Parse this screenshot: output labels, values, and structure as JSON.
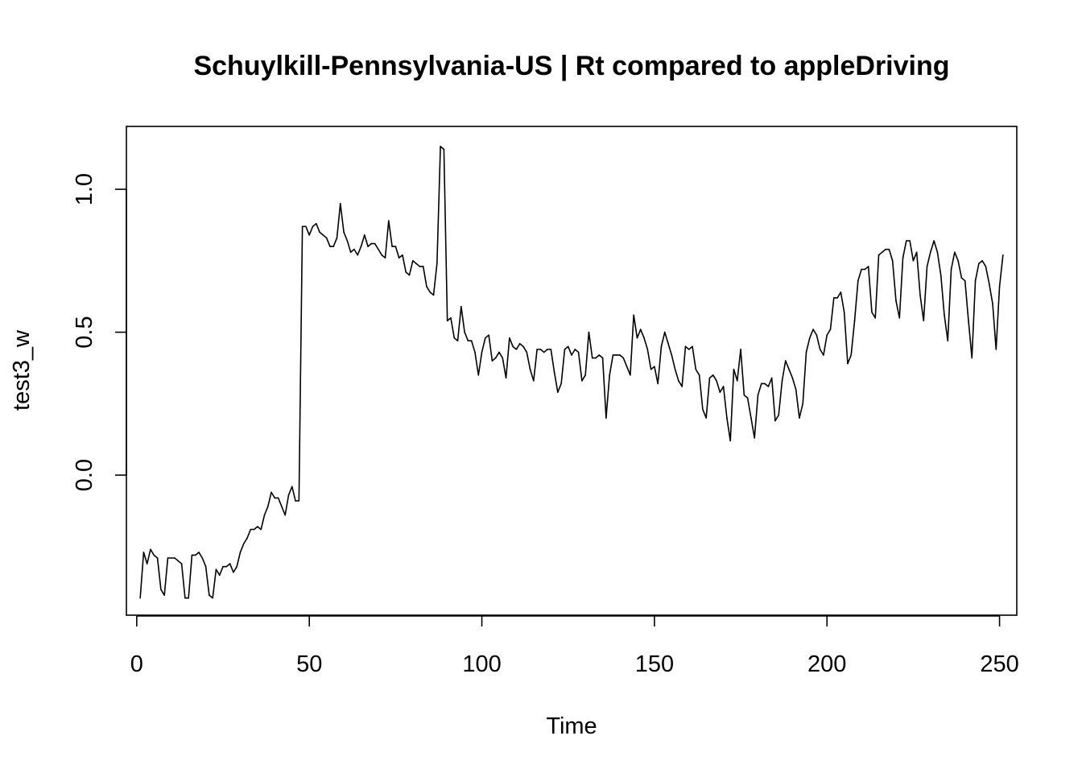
{
  "chart_data": {
    "type": "line",
    "title": "Schuylkill-Pennsylvania-US | Rt compared to appleDriving",
    "xlabel": "Time",
    "ylabel": "test3_w",
    "xlim": [
      -3,
      255
    ],
    "ylim": [
      -0.49,
      1.22
    ],
    "x_ticks": [
      0,
      50,
      100,
      150,
      200,
      250
    ],
    "x_tick_labels": [
      "0",
      "50",
      "100",
      "150",
      "200",
      "250"
    ],
    "y_ticks": [
      0.0,
      0.5,
      1.0
    ],
    "y_tick_labels": [
      "0.0",
      "0.5",
      "1.0"
    ],
    "grid": false,
    "series": [
      {
        "x_start": 1,
        "values": [
          -0.43,
          -0.27,
          -0.31,
          -0.26,
          -0.28,
          -0.29,
          -0.4,
          -0.42,
          -0.29,
          -0.29,
          -0.29,
          -0.3,
          -0.31,
          -0.43,
          -0.43,
          -0.28,
          -0.28,
          -0.27,
          -0.29,
          -0.32,
          -0.42,
          -0.43,
          -0.33,
          -0.35,
          -0.32,
          -0.32,
          -0.31,
          -0.34,
          -0.32,
          -0.27,
          -0.24,
          -0.22,
          -0.19,
          -0.19,
          -0.18,
          -0.19,
          -0.14,
          -0.11,
          -0.06,
          -0.08,
          -0.08,
          -0.11,
          -0.14,
          -0.07,
          -0.04,
          -0.09,
          -0.09,
          0.87,
          0.87,
          0.84,
          0.87,
          0.88,
          0.85,
          0.84,
          0.83,
          0.8,
          0.8,
          0.83,
          0.95,
          0.85,
          0.82,
          0.78,
          0.79,
          0.77,
          0.8,
          0.84,
          0.8,
          0.81,
          0.81,
          0.79,
          0.77,
          0.76,
          0.89,
          0.8,
          0.8,
          0.76,
          0.77,
          0.71,
          0.7,
          0.75,
          0.74,
          0.73,
          0.73,
          0.66,
          0.64,
          0.63,
          0.74,
          1.15,
          1.14,
          0.54,
          0.55,
          0.48,
          0.47,
          0.59,
          0.5,
          0.47,
          0.47,
          0.43,
          0.35,
          0.43,
          0.48,
          0.49,
          0.4,
          0.41,
          0.43,
          0.41,
          0.34,
          0.48,
          0.45,
          0.44,
          0.46,
          0.45,
          0.43,
          0.37,
          0.33,
          0.44,
          0.44,
          0.43,
          0.44,
          0.44,
          0.36,
          0.29,
          0.32,
          0.44,
          0.45,
          0.42,
          0.44,
          0.43,
          0.33,
          0.35,
          0.5,
          0.41,
          0.41,
          0.42,
          0.41,
          0.2,
          0.35,
          0.42,
          0.42,
          0.42,
          0.41,
          0.38,
          0.35,
          0.56,
          0.48,
          0.51,
          0.48,
          0.44,
          0.37,
          0.38,
          0.32,
          0.45,
          0.5,
          0.46,
          0.42,
          0.37,
          0.33,
          0.31,
          0.45,
          0.44,
          0.45,
          0.37,
          0.35,
          0.23,
          0.2,
          0.34,
          0.35,
          0.33,
          0.29,
          0.31,
          0.2,
          0.12,
          0.37,
          0.33,
          0.44,
          0.28,
          0.27,
          0.2,
          0.13,
          0.28,
          0.32,
          0.32,
          0.31,
          0.34,
          0.19,
          0.21,
          0.33,
          0.4,
          0.37,
          0.34,
          0.3,
          0.2,
          0.25,
          0.43,
          0.48,
          0.51,
          0.49,
          0.44,
          0.42,
          0.49,
          0.51,
          0.62,
          0.62,
          0.64,
          0.57,
          0.39,
          0.42,
          0.54,
          0.68,
          0.72,
          0.72,
          0.73,
          0.57,
          0.55,
          0.77,
          0.78,
          0.79,
          0.79,
          0.75,
          0.61,
          0.55,
          0.76,
          0.82,
          0.82,
          0.75,
          0.78,
          0.63,
          0.54,
          0.73,
          0.78,
          0.82,
          0.78,
          0.7,
          0.56,
          0.47,
          0.72,
          0.78,
          0.75,
          0.69,
          0.68,
          0.54,
          0.41,
          0.68,
          0.74,
          0.75,
          0.73,
          0.67,
          0.6,
          0.44,
          0.66,
          0.77
        ]
      }
    ]
  }
}
